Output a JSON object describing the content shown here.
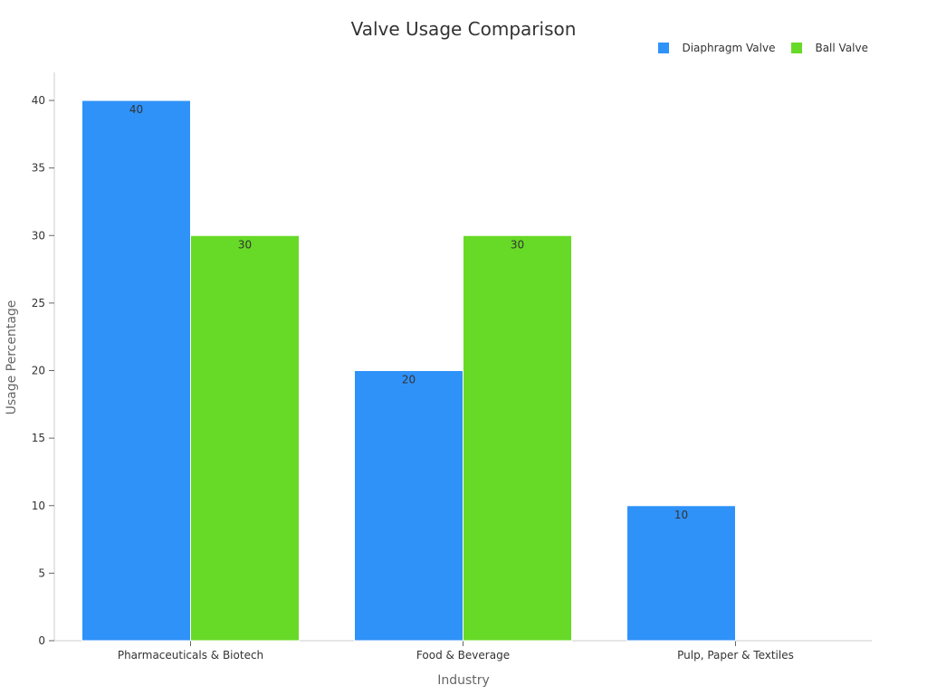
{
  "chart_data": {
    "type": "bar",
    "title": "Valve Usage Comparison",
    "xlabel": "Industry",
    "ylabel": "Usage Percentage",
    "categories": [
      "Pharmaceuticals & Biotech",
      "Food & Beverage",
      "Pulp, Paper & Textiles"
    ],
    "series": [
      {
        "name": "Diaphragm Valve",
        "color": "#2f92f9",
        "values": [
          40,
          20,
          10
        ]
      },
      {
        "name": "Ball Valve",
        "color": "#66da26",
        "values": [
          30,
          30,
          null
        ]
      }
    ],
    "ylim": [
      0,
      42
    ],
    "yticks": [
      0,
      5,
      10,
      15,
      20,
      25,
      30,
      35,
      40
    ],
    "legend_position": "top-right",
    "grid": false
  }
}
